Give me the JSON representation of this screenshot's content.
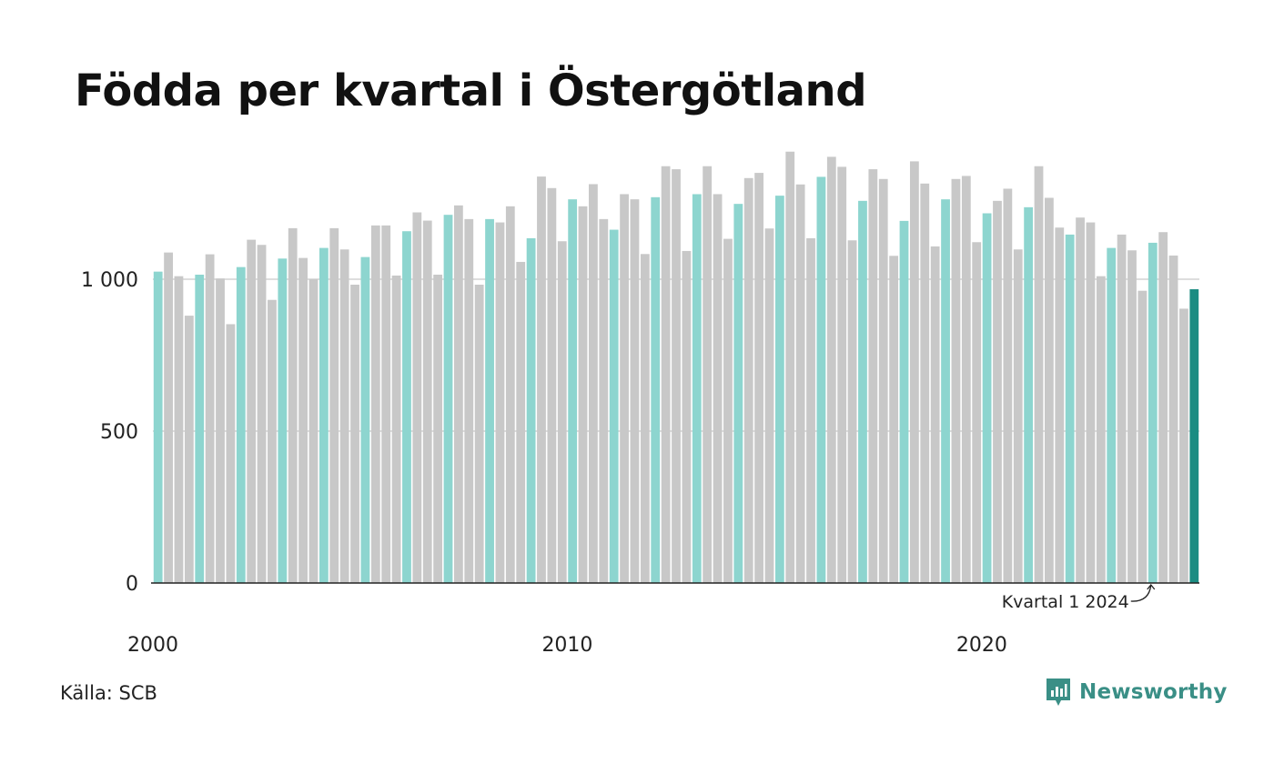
{
  "title": "Födda per kvartal i Östergötland",
  "source": "Källa: SCB",
  "brand": {
    "name": "Newsworthy",
    "icon": "newsworthy-logo-icon"
  },
  "colors": {
    "highlight_q1": "#8dd5cf",
    "other": "#c8c8c8",
    "latest": "#1b8c82",
    "grid": "#dddddd",
    "axis": "#222222",
    "brand": "#3a8f86"
  },
  "chart_data": {
    "type": "bar",
    "title": "Födda per kvartal i Östergötland",
    "x_start_year": 2000,
    "x_ticks": [
      "2000",
      "2010",
      "2020"
    ],
    "y_ticks": [
      {
        "value": 0,
        "label": "0"
      },
      {
        "value": 500,
        "label": "500"
      },
      {
        "value": 1000,
        "label": "1 000"
      }
    ],
    "ylim": [
      0,
      1500
    ],
    "grid": true,
    "annotation": {
      "text": "Kvartal 1 2024",
      "target_year": 2024,
      "target_quarter": 1
    },
    "values": [
      1025,
      1088,
      1010,
      880,
      1015,
      1082,
      1002,
      852,
      1040,
      1130,
      1113,
      932,
      1068,
      1168,
      1070,
      1000,
      1103,
      1168,
      1098,
      982,
      1073,
      1177,
      1177,
      1012,
      1158,
      1220,
      1193,
      1015,
      1212,
      1243,
      1198,
      982,
      1198,
      1187,
      1240,
      1057,
      1135,
      1338,
      1300,
      1125,
      1263,
      1240,
      1313,
      1198,
      1163,
      1280,
      1263,
      1083,
      1270,
      1372,
      1362,
      1093,
      1280,
      1372,
      1280,
      1133,
      1248,
      1333,
      1350,
      1167,
      1275,
      1420,
      1312,
      1135,
      1337,
      1403,
      1370,
      1128,
      1258,
      1362,
      1330,
      1077,
      1192,
      1388,
      1315,
      1108,
      1263,
      1330,
      1340,
      1122,
      1217,
      1258,
      1298,
      1098,
      1237,
      1372,
      1268,
      1170,
      1147,
      1203,
      1187,
      1010,
      1103,
      1147,
      1095,
      962,
      1120,
      1155,
      1078,
      903,
      967
    ]
  }
}
